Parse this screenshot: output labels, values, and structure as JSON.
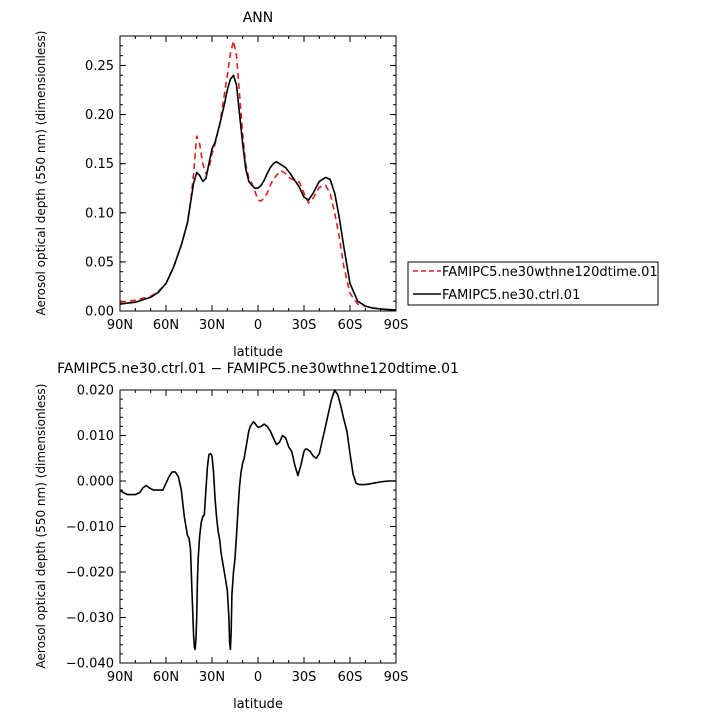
{
  "chart_data": [
    {
      "type": "line",
      "title": "ANN",
      "xlabel": "latitude",
      "ylabel": "Aerosol optical depth (550 nm) (dimensionless)",
      "xlim": [
        90,
        -90
      ],
      "ylim": [
        0,
        0.28
      ],
      "xticks": [
        90,
        60,
        30,
        0,
        -30,
        -60,
        -90
      ],
      "xticklabels": [
        "90N",
        "60N",
        "30N",
        "0",
        "30S",
        "60S",
        "90S"
      ],
      "yticks": [
        0,
        0.05,
        0.1,
        0.15,
        0.2,
        0.25
      ],
      "yticklabels": [
        "0.00",
        "0.05",
        "0.10",
        "0.15",
        "0.20",
        "0.25"
      ],
      "legend_position": "right",
      "series": [
        {
          "name": "FAMIPC5.ne30wthne120dtime.01",
          "color": "#e0201b",
          "dash": "dashed",
          "x": [
            90,
            80,
            70,
            65,
            60,
            55,
            50,
            46,
            44,
            42,
            40,
            38,
            36,
            34,
            32,
            30,
            28,
            25,
            22,
            20,
            18,
            16,
            14,
            12,
            10,
            8,
            6,
            4,
            2,
            0,
            -2,
            -4,
            -6,
            -8,
            -10,
            -12,
            -15,
            -18,
            -21,
            -24,
            -27,
            -30,
            -33,
            -36,
            -40,
            -44,
            -47,
            -50,
            -53,
            -56,
            -60,
            -65,
            -70,
            -75,
            -80,
            -90
          ],
          "y": [
            0.009,
            0.011,
            0.015,
            0.02,
            0.028,
            0.045,
            0.067,
            0.09,
            0.11,
            0.14,
            0.178,
            0.17,
            0.15,
            0.14,
            0.145,
            0.16,
            0.17,
            0.19,
            0.22,
            0.24,
            0.262,
            0.275,
            0.26,
            0.22,
            0.18,
            0.15,
            0.135,
            0.13,
            0.122,
            0.113,
            0.112,
            0.115,
            0.12,
            0.128,
            0.134,
            0.138,
            0.143,
            0.14,
            0.135,
            0.133,
            0.131,
            0.12,
            0.11,
            0.115,
            0.126,
            0.128,
            0.12,
            0.1,
            0.075,
            0.045,
            0.018,
            0.007,
            0.005,
            0.003,
            0.002,
            0.001
          ]
        },
        {
          "name": "FAMIPC5.ne30.ctrl.01",
          "color": "#000000",
          "dash": "solid",
          "x": [
            90,
            80,
            70,
            65,
            60,
            55,
            50,
            46,
            44,
            42,
            40,
            38,
            36,
            34,
            32,
            30,
            28,
            25,
            22,
            20,
            18,
            16,
            14,
            12,
            10,
            8,
            6,
            4,
            2,
            0,
            -2,
            -4,
            -6,
            -8,
            -10,
            -12,
            -15,
            -18,
            -21,
            -24,
            -27,
            -30,
            -33,
            -36,
            -40,
            -44,
            -47,
            -50,
            -53,
            -56,
            -60,
            -65,
            -70,
            -75,
            -80,
            -90
          ],
          "y": [
            0.007,
            0.009,
            0.014,
            0.019,
            0.028,
            0.045,
            0.067,
            0.09,
            0.11,
            0.13,
            0.141,
            0.138,
            0.132,
            0.135,
            0.15,
            0.165,
            0.172,
            0.19,
            0.21,
            0.225,
            0.236,
            0.24,
            0.23,
            0.2,
            0.17,
            0.145,
            0.132,
            0.128,
            0.125,
            0.125,
            0.128,
            0.133,
            0.14,
            0.146,
            0.15,
            0.152,
            0.149,
            0.146,
            0.14,
            0.133,
            0.126,
            0.116,
            0.113,
            0.12,
            0.132,
            0.136,
            0.134,
            0.12,
            0.095,
            0.065,
            0.028,
            0.01,
            0.005,
            0.003,
            0.002,
            0.001
          ]
        }
      ]
    },
    {
      "type": "line",
      "title": "FAMIPC5.ne30.ctrl.01 − FAMIPC5.ne30wthne120dtime.01",
      "xlabel": "latitude",
      "ylabel": "Aerosol optical depth (550 nm) (dimensionless)",
      "xlim": [
        90,
        -90
      ],
      "ylim": [
        -0.04,
        0.02
      ],
      "xticks": [
        90,
        60,
        30,
        0,
        -30,
        -60,
        -90
      ],
      "xticklabels": [
        "90N",
        "60N",
        "30N",
        "0",
        "30S",
        "60S",
        "90S"
      ],
      "yticks": [
        -0.04,
        -0.03,
        -0.02,
        -0.01,
        0,
        0.01,
        0.02
      ],
      "yticklabels": [
        "−0.040",
        "−0.030",
        "−0.020",
        "−0.010",
        "0.000",
        "0.010",
        "0.020"
      ],
      "series": [
        {
          "color": "#000000",
          "dash": "solid",
          "x": [
            90,
            88,
            85,
            80,
            77,
            75,
            73,
            71,
            68,
            65,
            62,
            60,
            58,
            56,
            54,
            52,
            50,
            48,
            46,
            45,
            44,
            43,
            42,
            41.5,
            41,
            40.5,
            40,
            39.5,
            39,
            38,
            37,
            36,
            35,
            34,
            33,
            32,
            31,
            30,
            29,
            28,
            27,
            26,
            25,
            24,
            22,
            20,
            19,
            18.5,
            18,
            17.5,
            17,
            16,
            15,
            14,
            13,
            12,
            11,
            10,
            9,
            8,
            7,
            6,
            5,
            4,
            3,
            2,
            1,
            0,
            -2,
            -4,
            -6,
            -8,
            -10,
            -12,
            -14,
            -16,
            -18,
            -20,
            -22,
            -24,
            -26,
            -28,
            -30,
            -31,
            -32,
            -34,
            -36,
            -38,
            -40,
            -42,
            -44,
            -46,
            -48,
            -50,
            -52,
            -54,
            -56,
            -58,
            -60,
            -62,
            -64,
            -66,
            -68,
            -70,
            -75,
            -80,
            -85,
            -90
          ],
          "y": [
            -0.002,
            -0.0025,
            -0.003,
            -0.003,
            -0.0025,
            -0.0015,
            -0.001,
            -0.0015,
            -0.002,
            -0.002,
            -0.002,
            -0.0005,
            0.001,
            0.002,
            0.002,
            0.001,
            -0.002,
            -0.008,
            -0.012,
            -0.0125,
            -0.015,
            -0.025,
            -0.034,
            -0.0365,
            -0.037,
            -0.035,
            -0.03,
            -0.022,
            -0.017,
            -0.012,
            -0.009,
            -0.0078,
            -0.0075,
            -0.002,
            0.003,
            0.0058,
            0.006,
            0.0055,
            0.002,
            -0.004,
            -0.008,
            -0.011,
            -0.013,
            -0.016,
            -0.02,
            -0.024,
            -0.03,
            -0.0355,
            -0.037,
            -0.033,
            -0.025,
            -0.02,
            -0.017,
            -0.012,
            -0.006,
            -0.001,
            0.002,
            0.004,
            0.005,
            0.007,
            0.009,
            0.011,
            0.012,
            0.0125,
            0.013,
            0.0127,
            0.0122,
            0.0118,
            0.012,
            0.0125,
            0.012,
            0.011,
            0.0095,
            0.008,
            0.0085,
            0.01,
            0.0095,
            0.0075,
            0.0065,
            0.0035,
            0.0012,
            0.0035,
            0.0065,
            0.007,
            0.007,
            0.0065,
            0.0055,
            0.005,
            0.006,
            0.009,
            0.012,
            0.015,
            0.018,
            0.02,
            0.019,
            0.0165,
            0.0135,
            0.011,
            0.006,
            0.0015,
            -0.0005,
            -0.0008,
            -0.0008,
            -0.0008,
            -0.0005,
            -0.0002,
            0.0,
            0.0
          ]
        }
      ]
    }
  ]
}
